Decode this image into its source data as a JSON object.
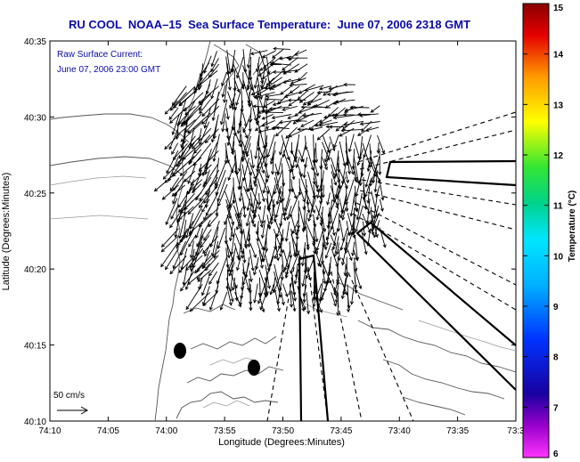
{
  "title": "RU COOL  NOAA–15  Sea Surface Temperature:  June 07, 2006 2318 GMT",
  "overlay": {
    "line1": "Raw Surface Current:",
    "line2": "June 07, 2006 23:00 GMT"
  },
  "axes": {
    "xlabel": "Longitude (Degrees:Minutes)",
    "ylabel": "Latitude (Degrees:Minutes)",
    "x_ticks": [
      "74:10",
      "74:05",
      "74:00",
      "73:55",
      "73:50",
      "73:45",
      "73:40",
      "73:35",
      "73:3"
    ],
    "y_ticks": [
      "40:35",
      "40:30",
      "40:25",
      "40:20",
      "40:15",
      "40:10"
    ]
  },
  "scale": {
    "label": "50 cm/s"
  },
  "colorbar": {
    "label": "Temperature (°C)",
    "ticks": [
      "15",
      "14",
      "13",
      "12",
      "11",
      "10",
      "9",
      "8",
      "7",
      "6"
    ],
    "min": 6,
    "max": 15
  }
}
